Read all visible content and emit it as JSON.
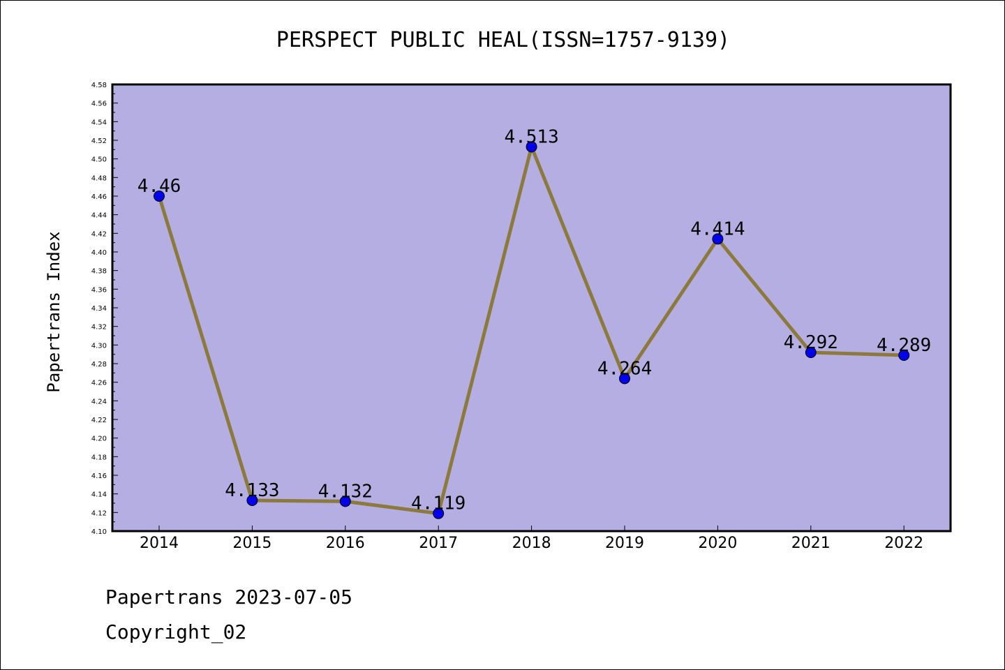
{
  "chart_data": {
    "type": "line",
    "title": "PERSPECT PUBLIC HEAL(ISSN=1757-9139)",
    "xlabel": "",
    "ylabel": "Papertrans Index",
    "categories": [
      "2014",
      "2015",
      "2016",
      "2017",
      "2018",
      "2019",
      "2020",
      "2021",
      "2022"
    ],
    "series": [
      {
        "values": [
          4.46,
          4.133,
          4.132,
          4.119,
          4.513,
          4.264,
          4.414,
          4.292,
          4.289
        ]
      }
    ],
    "data_labels": [
      "4.46",
      "4.133",
      "4.132",
      "4.119",
      "4.513",
      "4.264",
      "4.414",
      "4.292",
      "4.289"
    ],
    "ylim": [
      4.1,
      4.58
    ],
    "yticks": [
      "4.10",
      "4.12",
      "4.14",
      "4.16",
      "4.18",
      "4.20",
      "4.22",
      "4.24",
      "4.26",
      "4.28",
      "4.30",
      "4.32",
      "4.34",
      "4.36",
      "4.38",
      "4.40",
      "4.42",
      "4.44",
      "4.46",
      "4.48",
      "4.50",
      "4.52",
      "4.54",
      "4.56",
      "4.58"
    ],
    "grid": false,
    "colors": {
      "plot_background": "#b5aee2",
      "line": "#8c7a3c",
      "marker": "#0000ee"
    }
  },
  "footer": {
    "line1": "Papertrans 2023-07-05",
    "line2": "Copyright_02"
  }
}
